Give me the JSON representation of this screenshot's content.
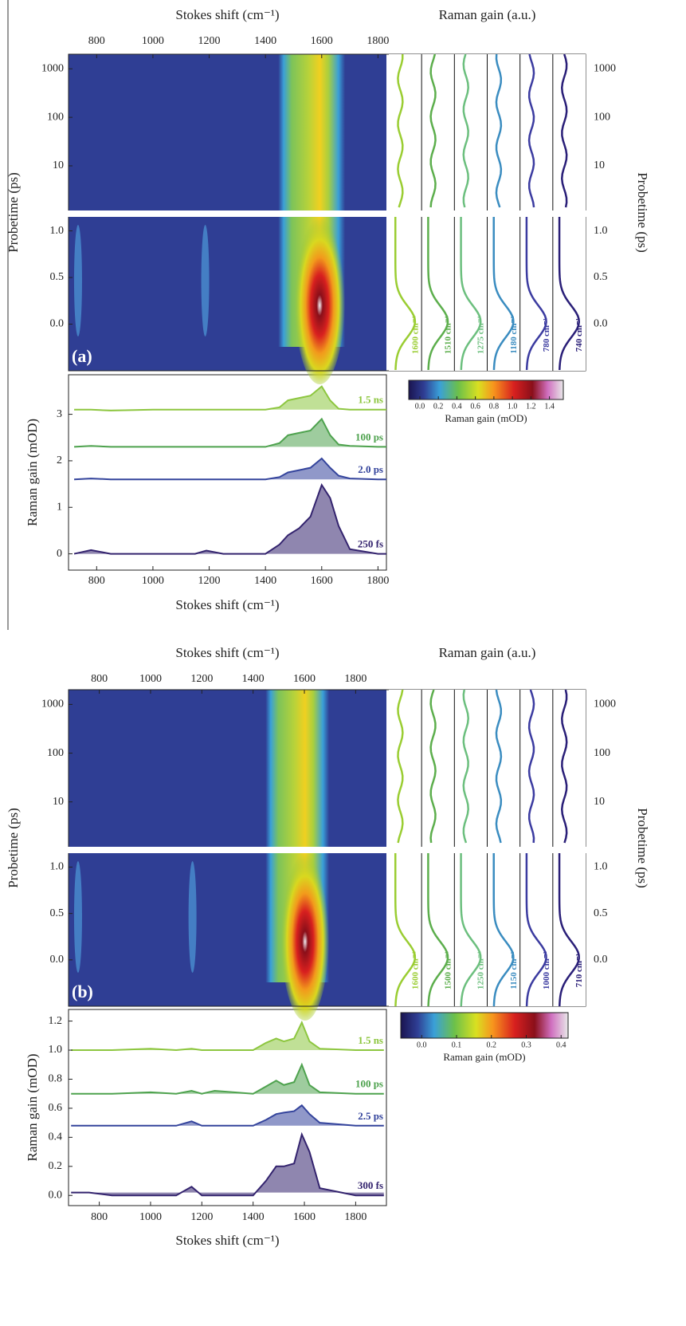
{
  "chart_data": [
    {
      "type": "contour",
      "panel_label": "(a)",
      "xlabel": "Stokes shift (cm⁻¹)",
      "ylabel": "Probetime (ps)",
      "xlim": [
        700,
        1830
      ],
      "xticks": [
        800,
        1000,
        1200,
        1400,
        1600,
        1800
      ],
      "ylim_log": [
        1.2,
        2000
      ],
      "yticks_log": [
        10,
        100,
        1000
      ],
      "log_scale": true,
      "ylim": [
        -0.5,
        1.15
      ],
      "yticks": [
        {
          "value": 0,
          "label": "0.0"
        },
        0.5,
        {
          "value": 1,
          "label": "1.0"
        }
      ]
    },
    {
      "type": "kinetics",
      "title": "Raman gain (a.u.)",
      "ylabel": "Probetime (ps)",
      "series": [
        {
          "name": "1600 cm⁻¹",
          "color": "#9acd32"
        },
        {
          "name": "1510 cm⁻¹",
          "color": "#5cae4c"
        },
        {
          "name": "1275 cm⁻¹",
          "color": "#6cbf7e"
        },
        {
          "name": "1180 cm⁻¹",
          "color": "#3a8cc0"
        },
        {
          "name": "780 cm⁻¹",
          "color": "#3b3ba0"
        },
        {
          "name": "740 cm⁻¹",
          "color": "#2a1f78"
        }
      ]
    },
    {
      "type": "colorbar",
      "label": "Raman gain (mOD)",
      "clim": [
        -0.12,
        1.55
      ],
      "ticks": [
        {
          "value": 0,
          "label": "0.0"
        },
        0.2,
        0.4,
        0.6,
        0.8,
        {
          "value": 1,
          "label": "1.0"
        },
        1.2,
        1.4
      ]
    },
    {
      "type": "area",
      "xlabel": "Stokes shift (cm⁻¹)",
      "ylabel": "Raman gain (mOD)",
      "xlim": [
        700,
        1830
      ],
      "xticks": [
        800,
        1000,
        1200,
        1400,
        1600,
        1800
      ],
      "ylim": [
        -0.35,
        3.85
      ],
      "yticks": [
        0,
        1,
        2,
        3
      ],
      "x": [
        720,
        780,
        850,
        1000,
        1150,
        1190,
        1250,
        1400,
        1450,
        1480,
        1520,
        1560,
        1600,
        1630,
        1660,
        1700,
        1800,
        1830
      ],
      "series": [
        {
          "name": "1.5 ns",
          "color": "#8dc63f",
          "values": [
            3.1,
            3.1,
            3.08,
            3.1,
            3.1,
            3.1,
            3.1,
            3.1,
            3.15,
            3.3,
            3.35,
            3.4,
            3.6,
            3.3,
            3.12,
            3.1,
            3.1,
            3.1
          ]
        },
        {
          "name": "100 ps",
          "color": "#4ea24e",
          "values": [
            2.3,
            2.32,
            2.3,
            2.3,
            2.3,
            2.3,
            2.3,
            2.3,
            2.38,
            2.55,
            2.6,
            2.65,
            2.9,
            2.55,
            2.35,
            2.32,
            2.3,
            2.3
          ]
        },
        {
          "name": "2.0 ps",
          "color": "#34449c",
          "values": [
            1.6,
            1.62,
            1.6,
            1.6,
            1.6,
            1.6,
            1.6,
            1.6,
            1.65,
            1.75,
            1.8,
            1.85,
            2.05,
            1.85,
            1.68,
            1.62,
            1.6,
            1.6
          ]
        },
        {
          "name": "250 fs",
          "color": "#33236e",
          "values": [
            0,
            0.08,
            0,
            0,
            0,
            0.07,
            0,
            0,
            0.2,
            0.4,
            0.55,
            0.8,
            1.48,
            1.2,
            0.6,
            0.1,
            0,
            0
          ]
        }
      ]
    },
    {
      "type": "contour",
      "panel_label": "(b)",
      "xlabel": "Stokes shift (cm⁻¹)",
      "ylabel": "Probetime (ps)",
      "xlim": [
        680,
        1920
      ],
      "xticks": [
        800,
        1000,
        1200,
        1400,
        1600,
        1800
      ],
      "ylim_log": [
        1.2,
        2000
      ],
      "yticks_log": [
        10,
        100,
        1000
      ],
      "log_scale": true,
      "ylim": [
        -0.5,
        1.15
      ],
      "yticks": [
        {
          "value": 0,
          "label": "0.0"
        },
        0.5,
        {
          "value": 1,
          "label": "1.0"
        }
      ]
    },
    {
      "type": "kinetics",
      "title": "Raman gain (a.u.)",
      "ylabel": "Probetime (ps)",
      "series": [
        {
          "name": "1600 cm⁻¹",
          "color": "#9acd32"
        },
        {
          "name": "1500 cm⁻¹",
          "color": "#5cae4c"
        },
        {
          "name": "1250 cm⁻¹",
          "color": "#6cbf7e"
        },
        {
          "name": "1150 cm⁻¹",
          "color": "#3a8cc0"
        },
        {
          "name": "1000 cm⁻¹",
          "color": "#3b3ba0"
        },
        {
          "name": "710 cm⁻¹",
          "color": "#2a1f78"
        }
      ]
    },
    {
      "type": "colorbar",
      "label": "Raman gain (mOD)",
      "clim": [
        -0.06,
        0.42
      ],
      "ticks": [
        {
          "value": 0,
          "label": "0.0"
        },
        0.1,
        0.2,
        0.3,
        0.4
      ]
    },
    {
      "type": "area",
      "xlabel": "Stokes shift (cm⁻¹)",
      "ylabel": "Raman gain (mOD)",
      "xlim": [
        680,
        1920
      ],
      "xticks": [
        800,
        1000,
        1200,
        1400,
        1600,
        1800
      ],
      "ylim": [
        -0.07,
        1.28
      ],
      "yticks": [
        {
          "value": 0,
          "label": "0.0"
        },
        0.2,
        0.4,
        0.6,
        0.8,
        {
          "value": 1,
          "label": "1.0"
        },
        1.2
      ],
      "x": [
        690,
        760,
        850,
        1000,
        1100,
        1160,
        1200,
        1250,
        1400,
        1450,
        1490,
        1520,
        1560,
        1590,
        1620,
        1660,
        1800,
        1910
      ],
      "series": [
        {
          "name": "1.5 ns",
          "color": "#8dc63f",
          "values": [
            1.0,
            1.0,
            1.0,
            1.01,
            1.0,
            1.01,
            1.0,
            1.0,
            1.0,
            1.05,
            1.08,
            1.06,
            1.08,
            1.19,
            1.06,
            1.01,
            1.0,
            1.0
          ]
        },
        {
          "name": "100 ps",
          "color": "#4ea24e",
          "values": [
            0.7,
            0.7,
            0.7,
            0.71,
            0.7,
            0.72,
            0.7,
            0.72,
            0.7,
            0.75,
            0.79,
            0.76,
            0.78,
            0.9,
            0.76,
            0.71,
            0.7,
            0.7
          ]
        },
        {
          "name": "2.5 ps",
          "color": "#34449c",
          "values": [
            0.48,
            0.48,
            0.48,
            0.48,
            0.48,
            0.51,
            0.48,
            0.48,
            0.48,
            0.52,
            0.56,
            0.57,
            0.58,
            0.62,
            0.56,
            0.5,
            0.48,
            0.48
          ]
        },
        {
          "name": "300 fs",
          "color": "#33236e",
          "values": [
            0.02,
            0.02,
            0,
            0,
            0,
            0.06,
            0,
            0,
            0,
            0.1,
            0.2,
            0.2,
            0.22,
            0.42,
            0.3,
            0.05,
            0,
            0
          ]
        }
      ]
    }
  ]
}
